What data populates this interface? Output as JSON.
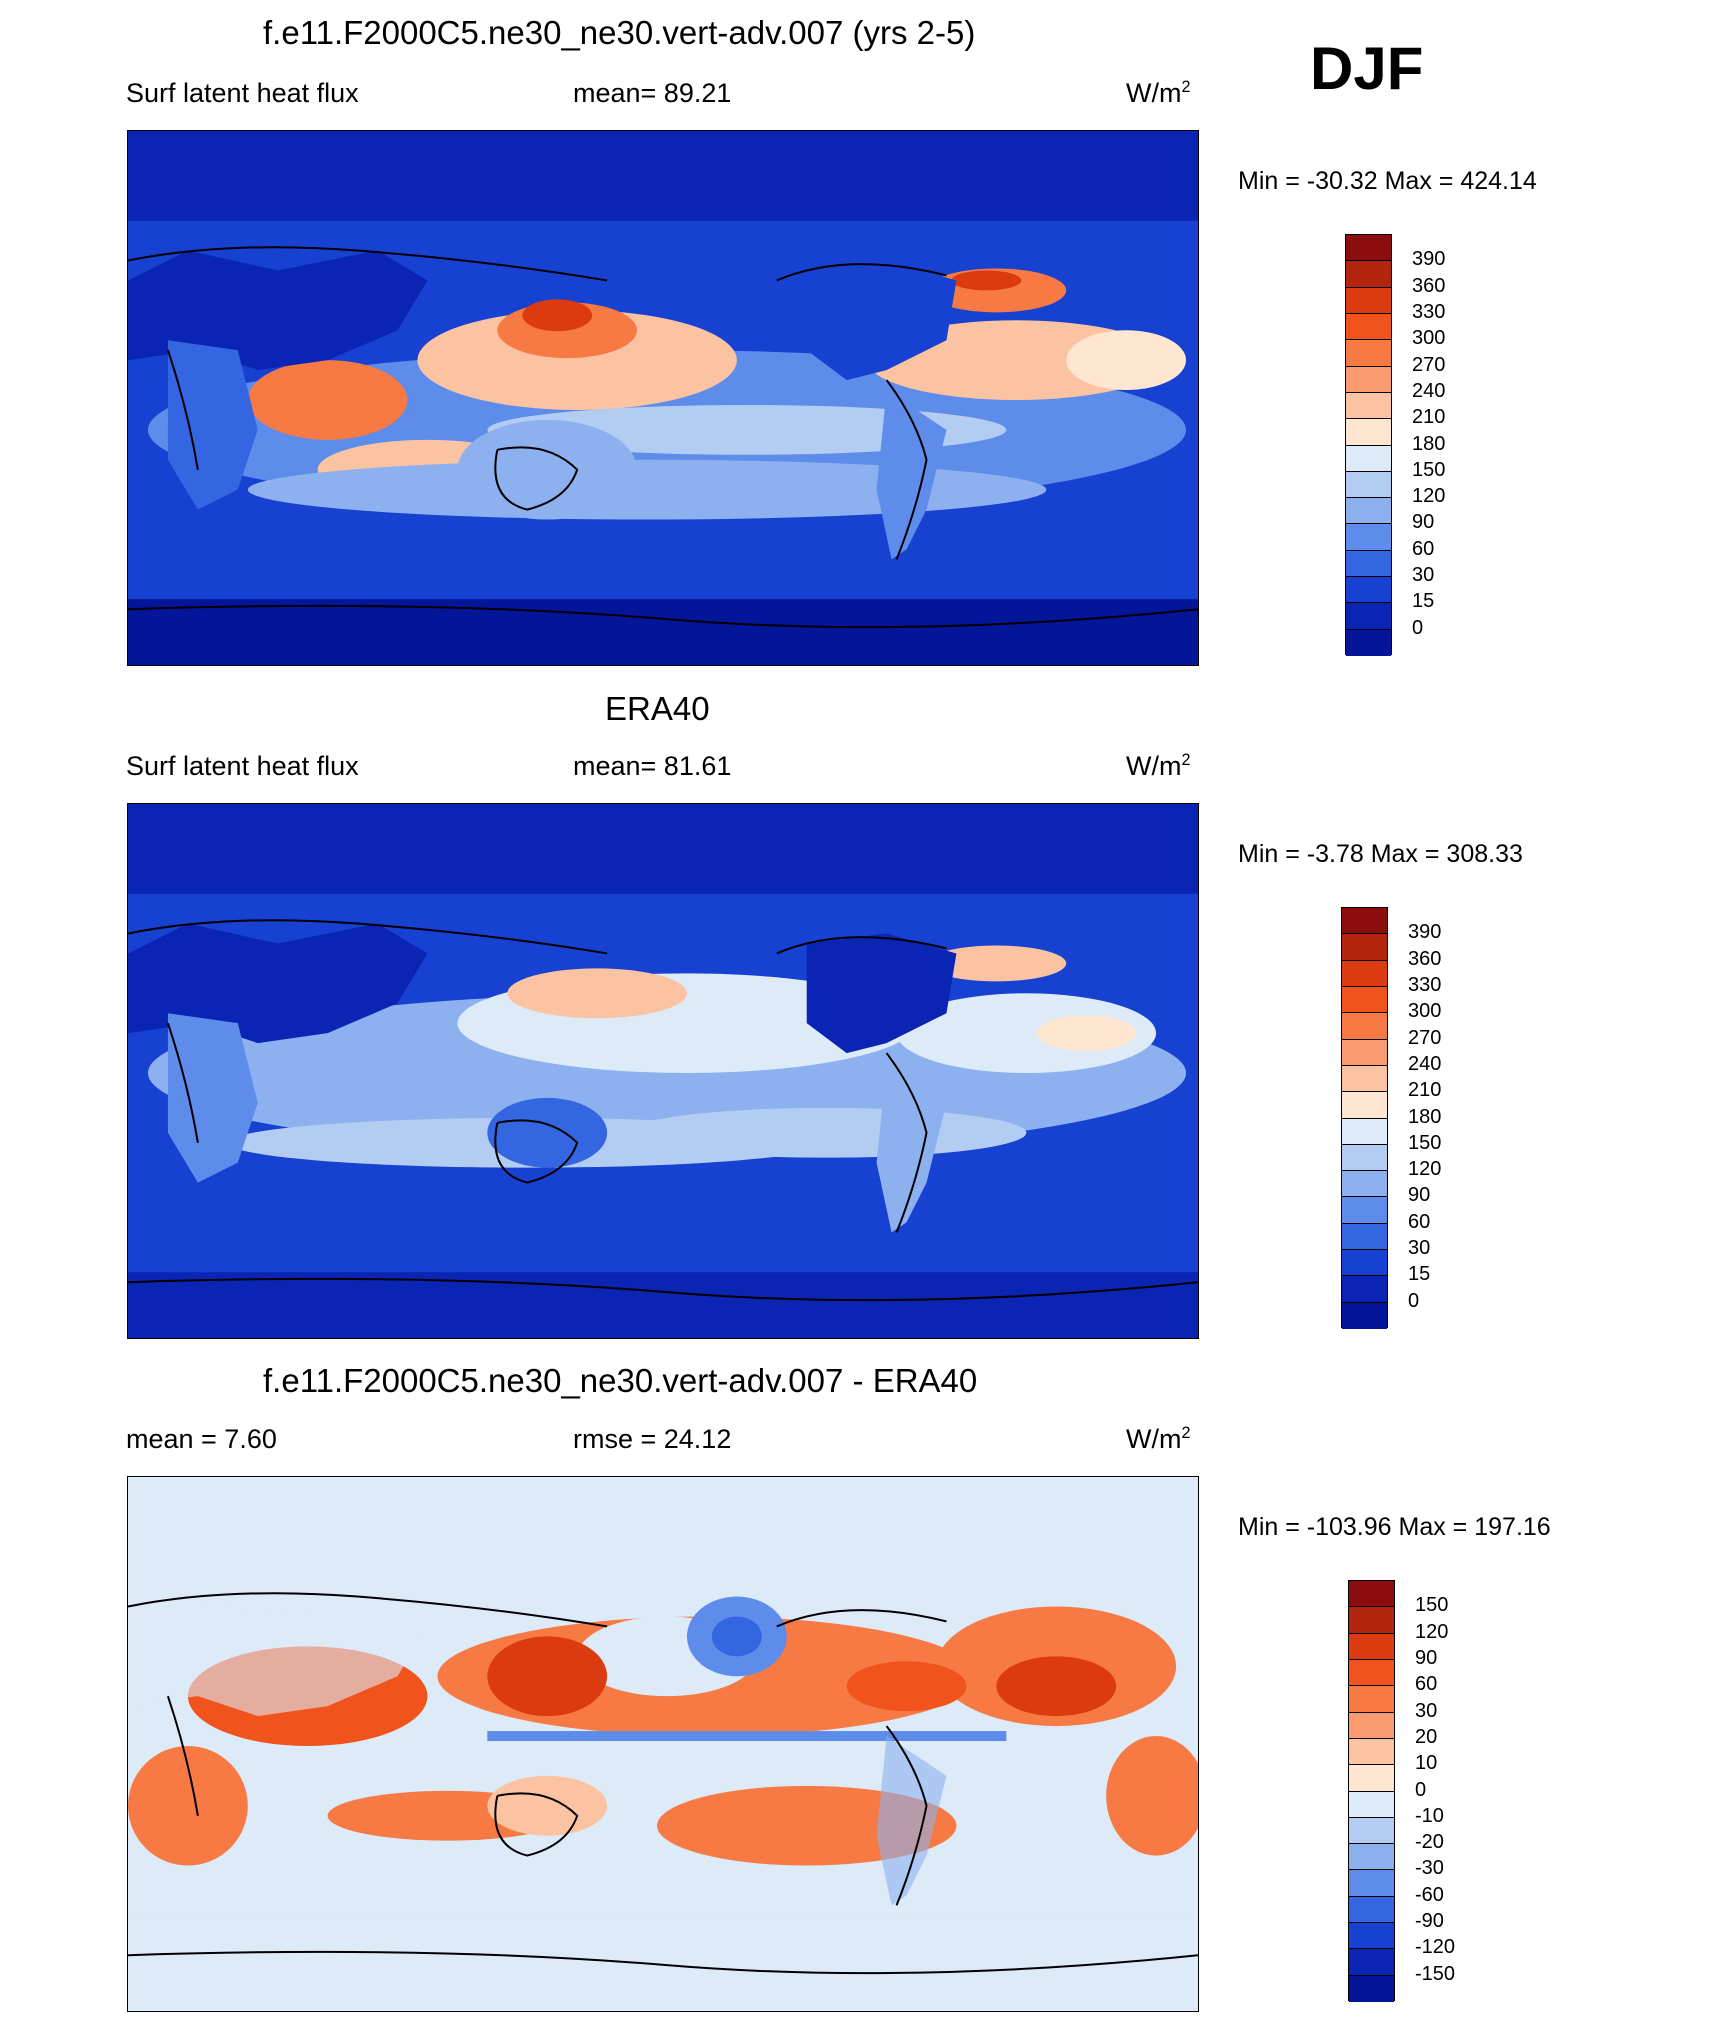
{
  "season": "DJF",
  "units_base": "W/m",
  "units_exp": "2",
  "panels": [
    {
      "title": "f.e11.F2000C5.ne30_ne30.vert-adv.007 (yrs 2-5)",
      "left_label": "Surf latent heat flux",
      "center_label": "mean=  89.21",
      "minmax": "Min = -30.32 Max = 424.14",
      "scale": "abs"
    },
    {
      "title": "ERA40",
      "left_label": "Surf latent heat flux",
      "center_label": "mean=  81.61",
      "minmax": "Min =  -3.78 Max = 308.33",
      "scale": "abs"
    },
    {
      "title": "f.e11.F2000C5.ne30_ne30.vert-adv.007 - ERA40",
      "left_label": "mean =   7.60",
      "center_label": "rmse =  24.12",
      "minmax": "Min = -103.96 Max = 197.16",
      "scale": "diff"
    }
  ],
  "colorbars": {
    "abs": {
      "labels": [
        "390",
        "360",
        "330",
        "300",
        "270",
        "240",
        "210",
        "180",
        "150",
        "120",
        "90",
        "60",
        "30",
        "15",
        "0"
      ],
      "colors": [
        "#8b0d0d",
        "#b3240f",
        "#dc3a10",
        "#f1531c",
        "#f77a45",
        "#fa9c70",
        "#fcc3a3",
        "#fee6d1",
        "#ddeaf7",
        "#b3cdf2",
        "#8db1ef",
        "#5d8ceb",
        "#3366e0",
        "#1741d0",
        "#0a24b4",
        "#05159a"
      ]
    },
    "diff": {
      "labels": [
        "150",
        "120",
        "90",
        "60",
        "30",
        "20",
        "10",
        "0",
        "-10",
        "-20",
        "-30",
        "-60",
        "-90",
        "-120",
        "-150"
      ],
      "colors": [
        "#8b0d0d",
        "#b3240f",
        "#dc3a10",
        "#f1531c",
        "#f77a45",
        "#fa9c70",
        "#fcc3a3",
        "#fee6d1",
        "#ddeaf7",
        "#b3cdf2",
        "#8db1ef",
        "#5d8ceb",
        "#3366e0",
        "#1741d0",
        "#0a24b4",
        "#05159a"
      ]
    }
  }
}
